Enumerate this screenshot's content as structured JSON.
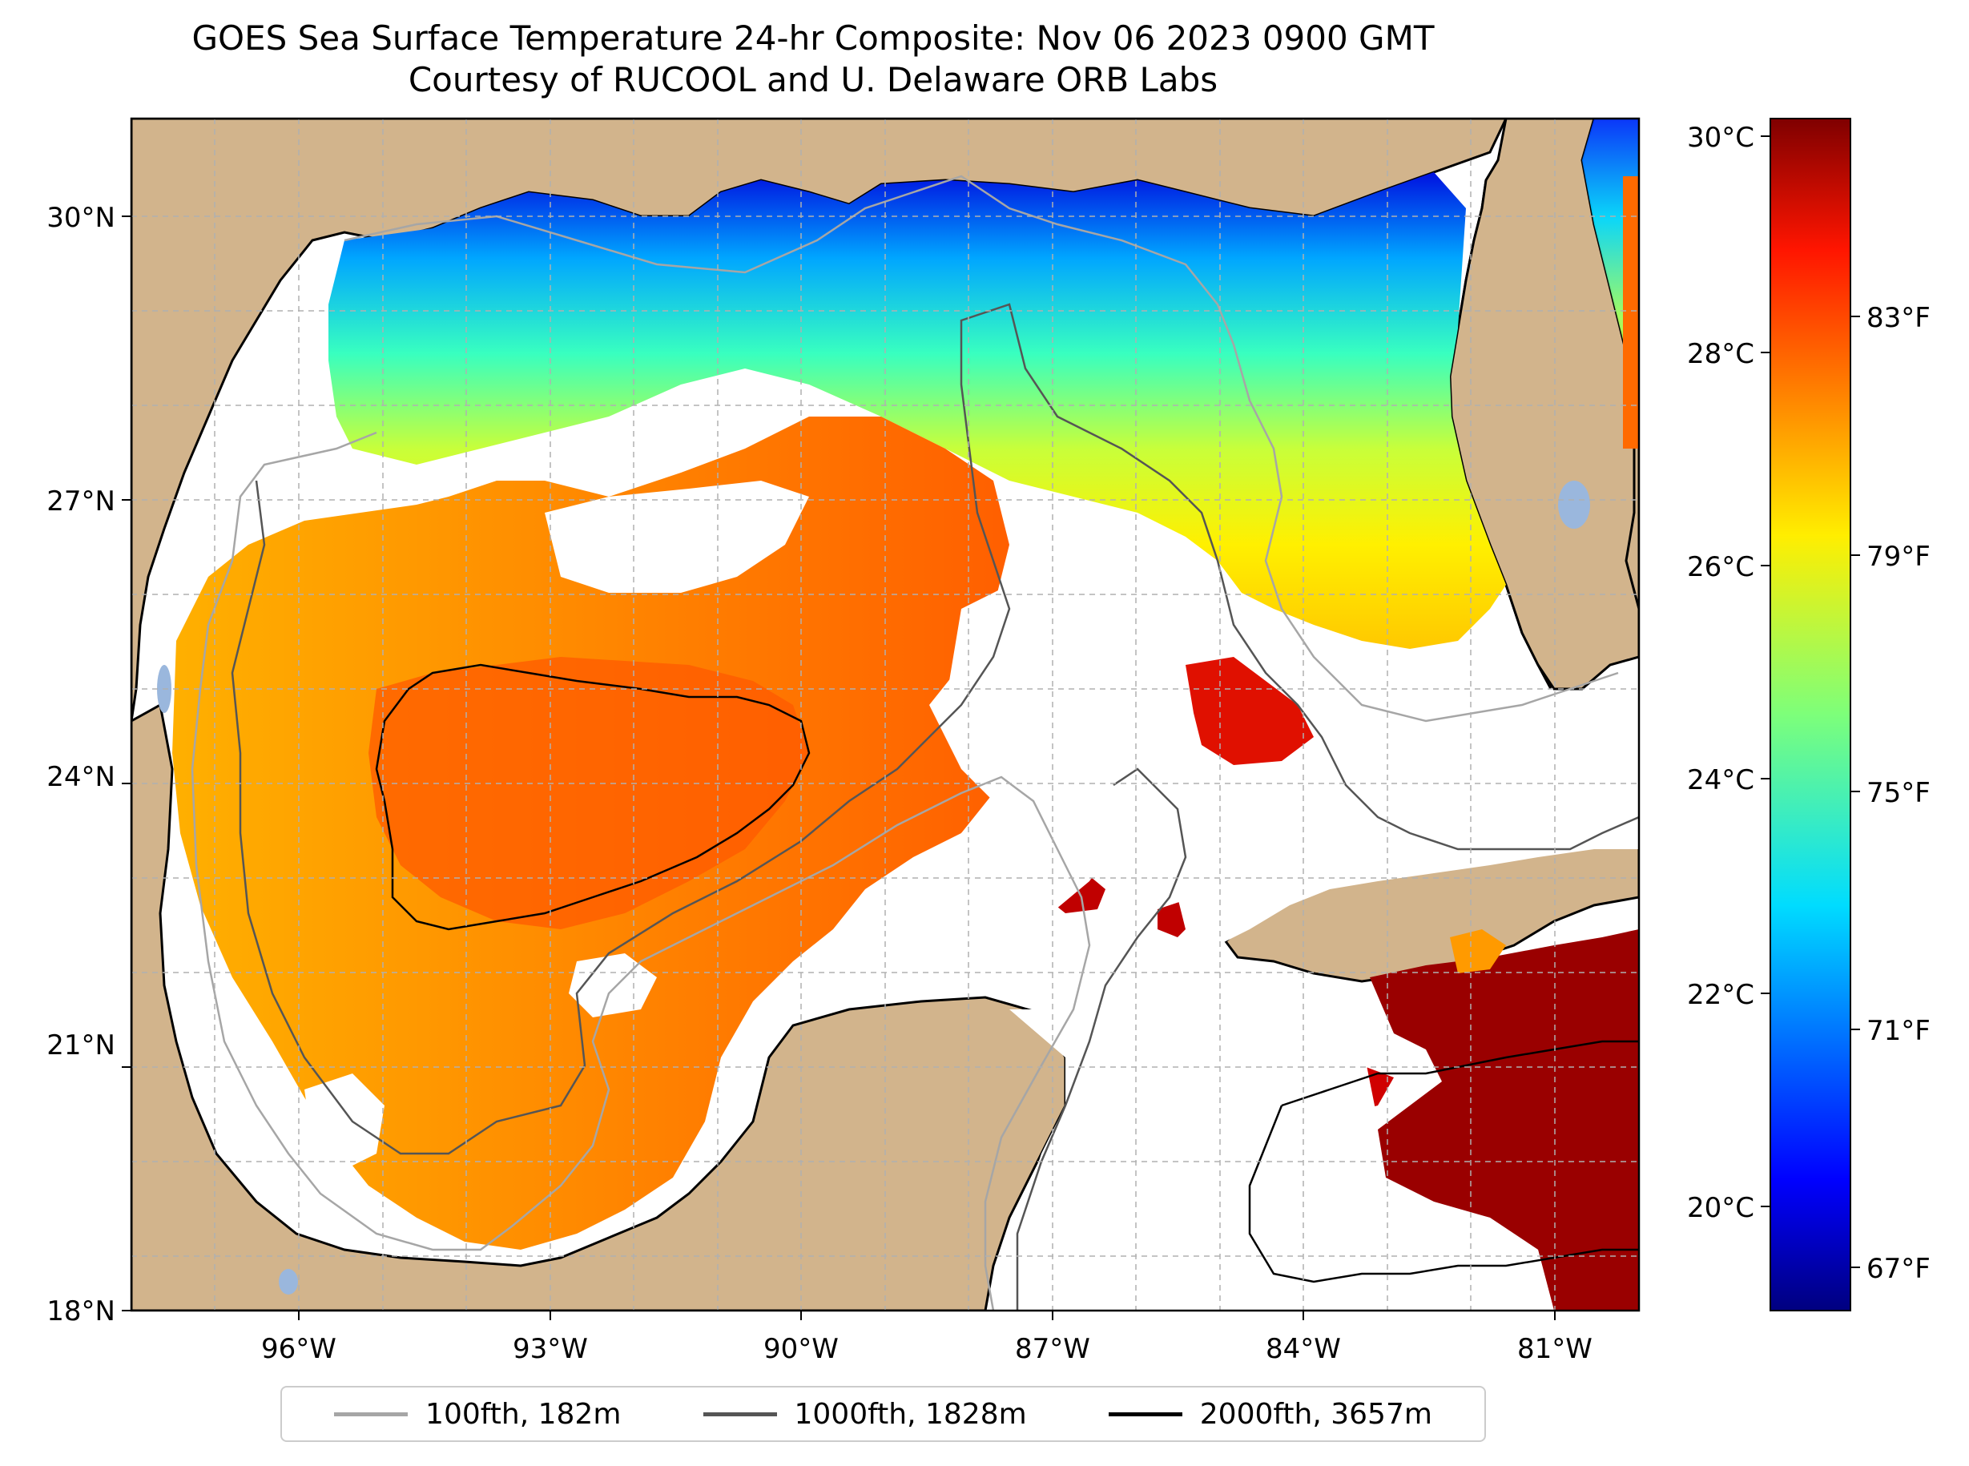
{
  "title": {
    "line1": "GOES Sea Surface Temperature 24-hr Composite: Nov 06 2023 0900 GMT",
    "line2": "Courtesy of RUCOOL and U. Delaware ORB Labs"
  },
  "map": {
    "extent_lon": [
      -98.0,
      -80.0
    ],
    "extent_lat": [
      18.0,
      31.0
    ],
    "lat_labels": [
      "30°N",
      "27°N",
      "24°N",
      "21°N",
      "18°N"
    ],
    "lon_labels": [
      "96°W",
      "93°W",
      "90°W",
      "87°W",
      "84°W",
      "81°W"
    ],
    "colors": {
      "land": "#d2b48c",
      "ocean_nodata": "#ffffff",
      "coastline": "#000000",
      "gridline": "#b0b0b0",
      "inland_water": "#9ab7dd"
    }
  },
  "colorbar": {
    "cmap": "jet",
    "celsius_labels": [
      "30°C",
      "28°C",
      "26°C",
      "24°C",
      "22°C",
      "20°C"
    ],
    "fahrenheit_labels": [
      "83°F",
      "79°F",
      "75°F",
      "71°F",
      "67°F"
    ],
    "range_c": [
      19.0,
      30.0
    ]
  },
  "legend": {
    "items": [
      {
        "label": "100fth, 182m",
        "color": "#a6a6a6"
      },
      {
        "label": "1000fth, 1828m",
        "color": "#555555"
      },
      {
        "label": "2000fth, 3657m",
        "color": "#000000"
      }
    ]
  }
}
